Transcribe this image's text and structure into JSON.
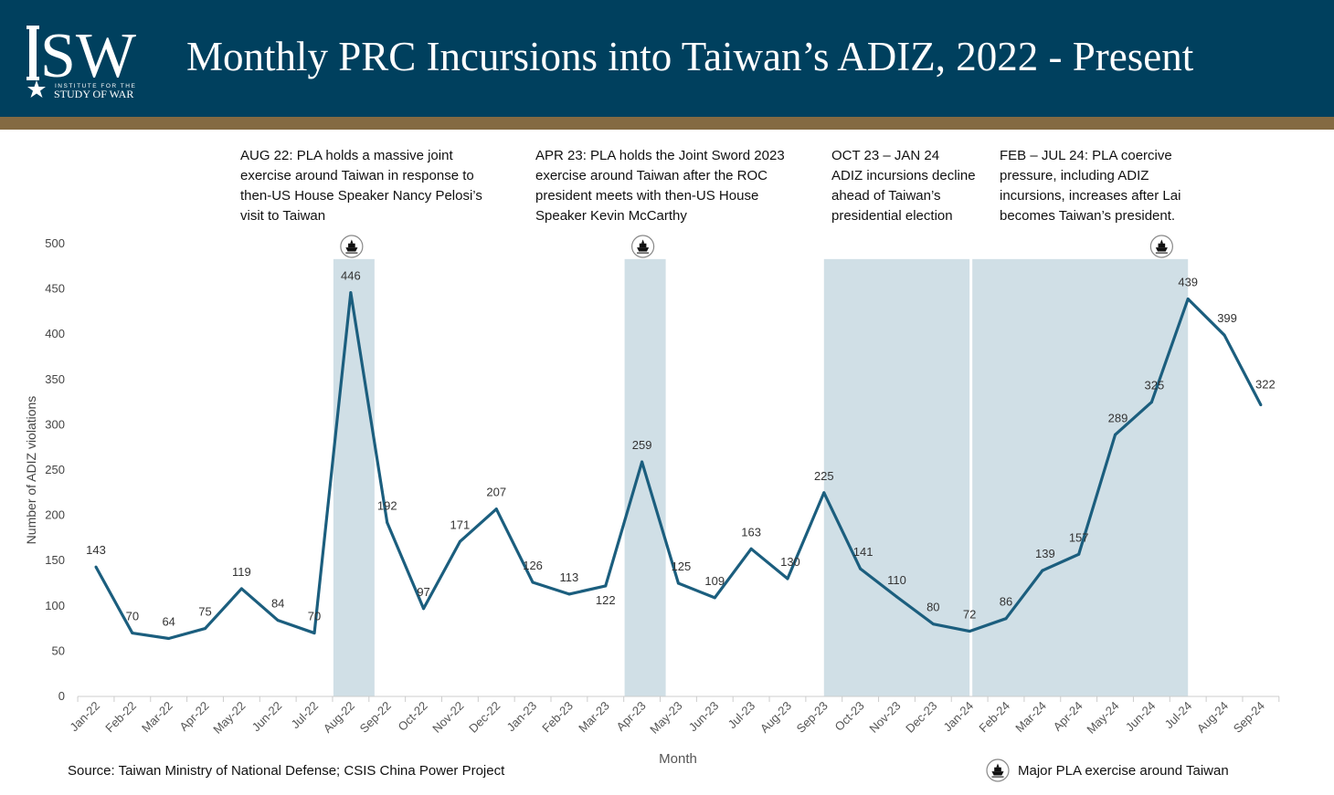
{
  "header": {
    "title": "Monthly PRC Incursions into Taiwan’s ADIZ, 2022 - Present",
    "logo_text": "ISW",
    "logo_subtitle_1": "INSTITUTE FOR THE",
    "logo_subtitle_2": "STUDY OF WAR",
    "colors": {
      "header_bg": "#00405e",
      "band": "#846a42"
    }
  },
  "annotations": [
    "AUG 22: PLA holds a massive joint\nexercise around Taiwan in response to\nthen-US House Speaker Nancy Pelosi’s\nvisit to Taiwan",
    "APR 23: PLA holds the Joint Sword 2023\nexercise around Taiwan after the ROC\npresident meets with then-US House\nSpeaker Kevin McCarthy",
    "OCT 23 – JAN 24\nADIZ incursions decline\nahead of Taiwan’s\npresidential election",
    "FEB – JUL 24: PLA coercive\npressure, including ADIZ\nincursions, increases after Lai\nbecomes Taiwan’s president."
  ],
  "chart_data": {
    "type": "line",
    "title": "Monthly PRC Incursions into Taiwan’s ADIZ, 2022 - Present",
    "xlabel": "Month",
    "ylabel": "Number of ADIZ violations",
    "ylim": [
      0,
      500
    ],
    "yticks": [
      0,
      50,
      100,
      150,
      200,
      250,
      300,
      350,
      400,
      450,
      500
    ],
    "grid": false,
    "categories": [
      "Jan-22",
      "Feb-22",
      "Mar-22",
      "Apr-22",
      "May-22",
      "Jun-22",
      "Jul-22",
      "Aug-22",
      "Sep-22",
      "Oct-22",
      "Nov-22",
      "Dec-22",
      "Jan-23",
      "Feb-23",
      "Mar-23",
      "Apr-23",
      "May-23",
      "Jun-23",
      "Jul-23",
      "Aug-23",
      "Sep-23",
      "Oct-23",
      "Nov-23",
      "Dec-23",
      "Jan-24",
      "Feb-24",
      "Mar-24",
      "Apr-24",
      "May-24",
      "Jun-24",
      "Jul-24",
      "Aug-24",
      "Sep-24"
    ],
    "values": [
      143,
      70,
      64,
      75,
      119,
      84,
      70,
      446,
      192,
      97,
      171,
      207,
      126,
      113,
      122,
      259,
      125,
      109,
      163,
      130,
      225,
      141,
      110,
      80,
      72,
      86,
      139,
      157,
      289,
      325,
      439,
      399,
      322
    ],
    "line_color": "#1b5e7e",
    "shaded_periods": [
      {
        "from": "Aug-22",
        "to": "Aug-22"
      },
      {
        "from": "Apr-23",
        "to": "Apr-23"
      },
      {
        "from": "Sep-23",
        "to": "Jan-24"
      },
      {
        "from": "Jan-24",
        "to": "Jul-24"
      }
    ],
    "shade_color": "#d0dfe6",
    "exercise_markers": [
      "Aug-22",
      "Apr-23",
      "Jun-24"
    ]
  },
  "source": "Source: Taiwan Ministry of National Defense; CSIS China Power Project",
  "legend": {
    "label": "Major PLA exercise around Taiwan",
    "icon": "ship-icon"
  }
}
